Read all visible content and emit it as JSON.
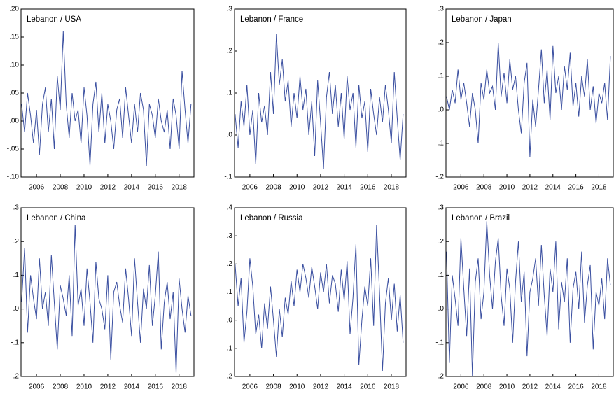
{
  "chart_data": [
    {
      "type": "line",
      "title": "Lebanon / USA",
      "color": "#3a4fa0",
      "x": [
        2004.75,
        2005,
        2005.25,
        2005.5,
        2005.75,
        2006,
        2006.25,
        2006.5,
        2006.75,
        2007,
        2007.25,
        2007.5,
        2007.75,
        2008,
        2008.25,
        2008.5,
        2008.75,
        2009,
        2009.25,
        2009.5,
        2009.75,
        2010,
        2010.25,
        2010.5,
        2010.75,
        2011,
        2011.25,
        2011.5,
        2011.75,
        2012,
        2012.25,
        2012.5,
        2012.75,
        2013,
        2013.25,
        2013.5,
        2013.75,
        2014,
        2014.25,
        2014.5,
        2014.75,
        2015,
        2015.25,
        2015.5,
        2015.75,
        2016,
        2016.25,
        2016.5,
        2016.75,
        2017,
        2017.25,
        2017.5,
        2017.75,
        2018,
        2018.25,
        2018.5,
        2018.75,
        2019
      ],
      "values": [
        0.03,
        -0.02,
        0.05,
        0.01,
        -0.04,
        0.02,
        -0.06,
        0.03,
        0.06,
        -0.02,
        0.04,
        -0.05,
        0.08,
        0.02,
        0.16,
        0.03,
        -0.03,
        0.05,
        0.0,
        0.02,
        -0.04,
        0.06,
        0.01,
        -0.08,
        0.03,
        0.07,
        -0.02,
        0.05,
        -0.04,
        0.03,
        0.0,
        -0.05,
        0.02,
        0.04,
        -0.03,
        0.06,
        0.01,
        -0.04,
        0.03,
        -0.02,
        0.05,
        0.02,
        -0.08,
        0.03,
        0.01,
        -0.03,
        0.04,
        0.0,
        -0.02,
        0.02,
        -0.05,
        0.04,
        0.01,
        -0.05,
        0.09,
        0.02,
        -0.04,
        0.03
      ],
      "xlim": [
        2004.7,
        2019.25
      ],
      "xticks": [
        2006,
        2008,
        2010,
        2012,
        2014,
        2016,
        2018
      ],
      "ylim": [
        -0.1,
        0.2
      ],
      "yticks": [
        {
          "value": -0.1,
          "label": "-.10"
        },
        {
          "value": -0.05,
          "label": "-.05"
        },
        {
          "value": 0,
          "label": ".00"
        },
        {
          "value": 0.05,
          "label": ".05"
        },
        {
          "value": 0.1,
          "label": ".10"
        },
        {
          "value": 0.15,
          "label": ".15"
        },
        {
          "value": 0.2,
          "label": ".20"
        }
      ]
    },
    {
      "type": "line",
      "title": "Lebanon / France",
      "color": "#3a4fa0",
      "x": [
        2004.75,
        2005,
        2005.25,
        2005.5,
        2005.75,
        2006,
        2006.25,
        2006.5,
        2006.75,
        2007,
        2007.25,
        2007.5,
        2007.75,
        2008,
        2008.25,
        2008.5,
        2008.75,
        2009,
        2009.25,
        2009.5,
        2009.75,
        2010,
        2010.25,
        2010.5,
        2010.75,
        2011,
        2011.25,
        2011.5,
        2011.75,
        2012,
        2012.25,
        2012.5,
        2012.75,
        2013,
        2013.25,
        2013.5,
        2013.75,
        2014,
        2014.25,
        2014.5,
        2014.75,
        2015,
        2015.25,
        2015.5,
        2015.75,
        2016,
        2016.25,
        2016.5,
        2016.75,
        2017,
        2017.25,
        2017.5,
        2017.75,
        2018,
        2018.25,
        2018.5,
        2018.75,
        2019
      ],
      "values": [
        0.05,
        -0.03,
        0.08,
        0.02,
        0.12,
        0.0,
        0.06,
        -0.07,
        0.1,
        0.03,
        0.07,
        0.0,
        0.15,
        0.05,
        0.24,
        0.12,
        0.18,
        0.08,
        0.13,
        0.02,
        0.1,
        0.04,
        0.14,
        0.06,
        0.11,
        0.0,
        0.08,
        -0.05,
        0.13,
        0.03,
        -0.08,
        0.09,
        0.15,
        0.05,
        0.12,
        0.02,
        0.1,
        -0.01,
        0.14,
        0.06,
        0.1,
        -0.03,
        0.12,
        0.04,
        0.08,
        -0.04,
        0.11,
        0.05,
        0.0,
        0.09,
        0.03,
        0.12,
        0.06,
        -0.02,
        0.15,
        0.04,
        -0.06,
        0.05
      ],
      "xlim": [
        2004.7,
        2019.25
      ],
      "xticks": [
        2006,
        2008,
        2010,
        2012,
        2014,
        2016,
        2018
      ],
      "ylim": [
        -0.1,
        0.3
      ],
      "yticks": [
        {
          "value": -0.1,
          "label": "-.1"
        },
        {
          "value": 0,
          "label": ".0"
        },
        {
          "value": 0.1,
          "label": ".1"
        },
        {
          "value": 0.2,
          "label": ".2"
        },
        {
          "value": 0.3,
          "label": ".3"
        }
      ]
    },
    {
      "type": "line",
      "title": "Lebanon / Japan",
      "color": "#3a4fa0",
      "x": [
        2004.75,
        2005,
        2005.25,
        2005.5,
        2005.75,
        2006,
        2006.25,
        2006.5,
        2006.75,
        2007,
        2007.25,
        2007.5,
        2007.75,
        2008,
        2008.25,
        2008.5,
        2008.75,
        2009,
        2009.25,
        2009.5,
        2009.75,
        2010,
        2010.25,
        2010.5,
        2010.75,
        2011,
        2011.25,
        2011.5,
        2011.75,
        2012,
        2012.25,
        2012.5,
        2012.75,
        2013,
        2013.25,
        2013.5,
        2013.75,
        2014,
        2014.25,
        2014.5,
        2014.75,
        2015,
        2015.25,
        2015.5,
        2015.75,
        2016,
        2016.25,
        2016.5,
        2016.75,
        2017,
        2017.25,
        2017.5,
        2017.75,
        2018,
        2018.25,
        2018.5,
        2018.75,
        2019
      ],
      "values": [
        0.04,
        0.0,
        0.06,
        0.02,
        0.12,
        0.03,
        0.08,
        0.02,
        -0.05,
        0.05,
        0.0,
        -0.1,
        0.08,
        0.03,
        0.12,
        0.05,
        0.07,
        0.0,
        0.2,
        0.04,
        0.11,
        0.02,
        0.15,
        0.06,
        0.1,
        0.0,
        -0.07,
        0.08,
        0.14,
        -0.14,
        0.03,
        -0.05,
        0.06,
        0.18,
        0.02,
        0.12,
        -0.03,
        0.19,
        0.05,
        0.1,
        0.0,
        0.13,
        0.06,
        0.17,
        0.01,
        0.08,
        -0.02,
        0.1,
        0.04,
        0.15,
        0.0,
        0.07,
        -0.04,
        0.05,
        0.02,
        0.08,
        -0.03,
        0.16
      ],
      "xlim": [
        2004.7,
        2019.25
      ],
      "xticks": [
        2006,
        2008,
        2010,
        2012,
        2014,
        2016,
        2018
      ],
      "ylim": [
        -0.2,
        0.3
      ],
      "yticks": [
        {
          "value": -0.2,
          "label": "-.2"
        },
        {
          "value": -0.1,
          "label": "-.1"
        },
        {
          "value": 0,
          "label": ".0"
        },
        {
          "value": 0.1,
          "label": ".1"
        },
        {
          "value": 0.2,
          "label": ".2"
        },
        {
          "value": 0.3,
          "label": ".3"
        }
      ]
    },
    {
      "type": "line",
      "title": "Lebanon / China",
      "color": "#3a4fa0",
      "x": [
        2004.75,
        2005,
        2005.25,
        2005.5,
        2005.75,
        2006,
        2006.25,
        2006.5,
        2006.75,
        2007,
        2007.25,
        2007.5,
        2007.75,
        2008,
        2008.25,
        2008.5,
        2008.75,
        2009,
        2009.25,
        2009.5,
        2009.75,
        2010,
        2010.25,
        2010.5,
        2010.75,
        2011,
        2011.25,
        2011.5,
        2011.75,
        2012,
        2012.25,
        2012.5,
        2012.75,
        2013,
        2013.25,
        2013.5,
        2013.75,
        2014,
        2014.25,
        2014.5,
        2014.75,
        2015,
        2015.25,
        2015.5,
        2015.75,
        2016,
        2016.25,
        2016.5,
        2016.75,
        2017,
        2017.25,
        2017.5,
        2017.75,
        2018,
        2018.25,
        2018.5,
        2018.75,
        2019
      ],
      "values": [
        0.02,
        0.18,
        -0.07,
        0.1,
        0.03,
        -0.03,
        0.15,
        0.0,
        0.05,
        -0.05,
        0.16,
        0.02,
        -0.12,
        0.07,
        0.03,
        -0.02,
        0.1,
        -0.08,
        0.25,
        0.01,
        0.06,
        -0.05,
        0.12,
        0.02,
        -0.1,
        0.14,
        0.03,
        0.0,
        -0.06,
        0.1,
        -0.15,
        0.05,
        0.08,
        0.01,
        -0.04,
        0.12,
        0.03,
        -0.08,
        0.15,
        0.02,
        -0.1,
        0.06,
        0.0,
        0.13,
        -0.05,
        0.04,
        0.17,
        -0.12,
        0.02,
        0.08,
        -0.03,
        0.05,
        -0.19,
        0.09,
        0.0,
        -0.07,
        0.04,
        -0.02
      ],
      "xlim": [
        2004.7,
        2019.25
      ],
      "xticks": [
        2006,
        2008,
        2010,
        2012,
        2014,
        2016,
        2018
      ],
      "ylim": [
        -0.2,
        0.3
      ],
      "yticks": [
        {
          "value": -0.2,
          "label": "-.2"
        },
        {
          "value": -0.1,
          "label": "-.1"
        },
        {
          "value": 0,
          "label": ".0"
        },
        {
          "value": 0.1,
          "label": ".1"
        },
        {
          "value": 0.2,
          "label": ".2"
        },
        {
          "value": 0.3,
          "label": ".3"
        }
      ]
    },
    {
      "type": "line",
      "title": "Lebanon / Russia",
      "color": "#3a4fa0",
      "x": [
        2004.75,
        2005,
        2005.25,
        2005.5,
        2005.75,
        2006,
        2006.25,
        2006.5,
        2006.75,
        2007,
        2007.25,
        2007.5,
        2007.75,
        2008,
        2008.25,
        2008.5,
        2008.75,
        2009,
        2009.25,
        2009.5,
        2009.75,
        2010,
        2010.25,
        2010.5,
        2010.75,
        2011,
        2011.25,
        2011.5,
        2011.75,
        2012,
        2012.25,
        2012.5,
        2012.75,
        2013,
        2013.25,
        2013.5,
        2013.75,
        2014,
        2014.25,
        2014.5,
        2014.75,
        2015,
        2015.25,
        2015.5,
        2015.75,
        2016,
        2016.25,
        2016.5,
        2016.75,
        2017,
        2017.25,
        2017.5,
        2017.75,
        2018,
        2018.25,
        2018.5,
        2018.75,
        2019
      ],
      "values": [
        0.2,
        0.05,
        0.15,
        -0.08,
        0.03,
        0.22,
        0.12,
        -0.05,
        0.02,
        -0.1,
        0.06,
        -0.03,
        0.12,
        0.0,
        -0.13,
        0.04,
        -0.06,
        0.08,
        0.02,
        0.14,
        0.05,
        0.18,
        0.1,
        0.2,
        0.15,
        0.08,
        0.19,
        0.12,
        0.04,
        0.17,
        0.1,
        0.2,
        0.06,
        0.16,
        0.13,
        0.03,
        0.18,
        0.07,
        0.21,
        -0.05,
        0.08,
        0.27,
        -0.16,
        0.0,
        0.12,
        0.05,
        0.22,
        -0.02,
        0.34,
        0.1,
        -0.18,
        0.06,
        0.15,
        0.0,
        0.13,
        -0.04,
        0.09,
        -0.08
      ],
      "xlim": [
        2004.7,
        2019.25
      ],
      "xticks": [
        2006,
        2008,
        2010,
        2012,
        2014,
        2016,
        2018
      ],
      "ylim": [
        -0.2,
        0.4
      ],
      "yticks": [
        {
          "value": -0.2,
          "label": "-.2"
        },
        {
          "value": -0.1,
          "label": "-.1"
        },
        {
          "value": 0,
          "label": ".0"
        },
        {
          "value": 0.1,
          "label": ".1"
        },
        {
          "value": 0.2,
          "label": ".2"
        },
        {
          "value": 0.3,
          "label": ".3"
        },
        {
          "value": 0.4,
          "label": ".4"
        }
      ]
    },
    {
      "type": "line",
      "title": "Lebanon / Brazil",
      "color": "#3a4fa0",
      "x": [
        2004.75,
        2005,
        2005.25,
        2005.5,
        2005.75,
        2006,
        2006.25,
        2006.5,
        2006.75,
        2007,
        2007.25,
        2007.5,
        2007.75,
        2008,
        2008.25,
        2008.5,
        2008.75,
        2009,
        2009.25,
        2009.5,
        2009.75,
        2010,
        2010.25,
        2010.5,
        2010.75,
        2011,
        2011.25,
        2011.5,
        2011.75,
        2012,
        2012.25,
        2012.5,
        2012.75,
        2013,
        2013.25,
        2013.5,
        2013.75,
        2014,
        2014.25,
        2014.5,
        2014.75,
        2015,
        2015.25,
        2015.5,
        2015.75,
        2016,
        2016.25,
        2016.5,
        2016.75,
        2017,
        2017.25,
        2017.5,
        2017.75,
        2018,
        2018.25,
        2018.5,
        2018.75,
        2019
      ],
      "values": [
        0.17,
        -0.16,
        0.1,
        0.03,
        -0.05,
        0.21,
        0.06,
        -0.08,
        0.12,
        -0.2,
        0.08,
        0.15,
        -0.03,
        0.05,
        0.26,
        0.1,
        0.0,
        0.14,
        0.21,
        0.04,
        -0.05,
        0.12,
        0.06,
        -0.1,
        0.08,
        0.2,
        0.02,
        0.11,
        -0.14,
        0.05,
        0.09,
        0.15,
        0.01,
        0.19,
        0.04,
        -0.08,
        0.12,
        0.05,
        0.2,
        -0.06,
        0.08,
        0.02,
        0.15,
        -0.1,
        0.06,
        0.11,
        0.0,
        0.17,
        -0.04,
        0.07,
        0.13,
        -0.12,
        0.05,
        0.01,
        0.09,
        -0.03,
        0.15,
        0.07
      ],
      "xlim": [
        2004.7,
        2019.25
      ],
      "xticks": [
        2006,
        2008,
        2010,
        2012,
        2014,
        2016,
        2018
      ],
      "ylim": [
        -0.2,
        0.3
      ],
      "yticks": [
        {
          "value": -0.2,
          "label": "-.2"
        },
        {
          "value": -0.1,
          "label": "-.1"
        },
        {
          "value": 0,
          "label": ".0"
        },
        {
          "value": 0.1,
          "label": ".1"
        },
        {
          "value": 0.2,
          "label": ".2"
        },
        {
          "value": 0.3,
          "label": ".3"
        }
      ]
    }
  ]
}
